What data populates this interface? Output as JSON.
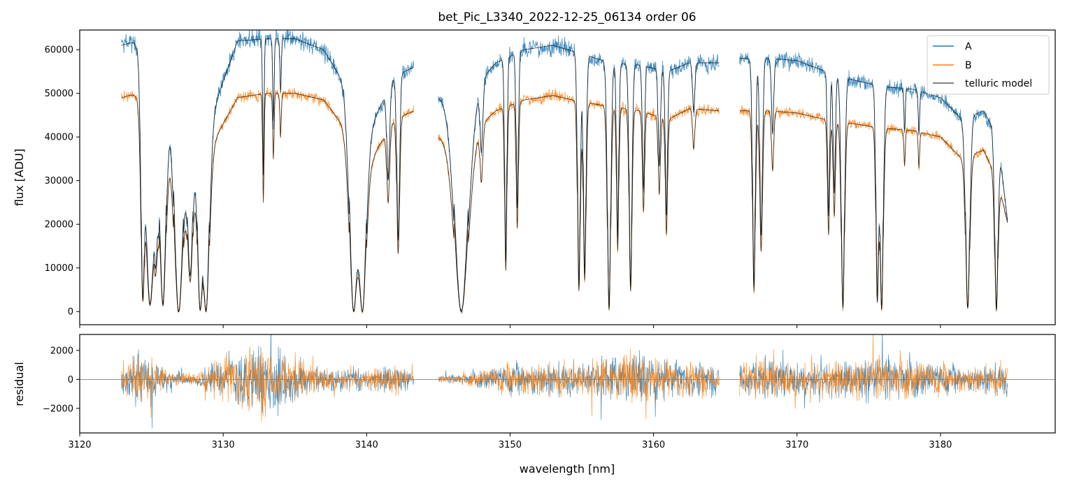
{
  "chart_data": [
    {
      "panel": "top",
      "type": "line",
      "title": "bet_Pic_L3340_2022-12-25_06134  order 06",
      "xlabel": "",
      "ylabel": "flux [ADU]",
      "xlim": [
        3120,
        3188
      ],
      "ylim": [
        -3000,
        64500
      ],
      "xticks": [
        3120,
        3130,
        3140,
        3150,
        3160,
        3170,
        3180
      ],
      "yticks": [
        0,
        10000,
        20000,
        30000,
        40000,
        50000,
        60000
      ],
      "yticklabels": [
        "0",
        "10000",
        "20000",
        "30000",
        "40000",
        "50000",
        "60000"
      ],
      "legend": {
        "placement": "top-right",
        "entries": [
          "A",
          "B",
          "telluric model"
        ]
      },
      "colors": {
        "A": "#1f77b4",
        "B": "#ff7f0e",
        "telluric model": "#000000"
      },
      "continuum": {
        "A": [
          [
            3122.9,
            61000
          ],
          [
            3124.0,
            62000
          ],
          [
            3125.5,
            58000
          ],
          [
            3126.5,
            56000
          ],
          [
            3128.0,
            42000
          ],
          [
            3129.5,
            48000
          ],
          [
            3131.0,
            62000
          ],
          [
            3133.0,
            62500
          ],
          [
            3135.0,
            62500
          ],
          [
            3137.0,
            60000
          ],
          [
            3138.5,
            52000
          ],
          [
            3140.5,
            44000
          ],
          [
            3142.0,
            54000
          ],
          [
            3143.3,
            56000
          ],
          [
            3145.0,
            49000
          ],
          [
            3147.0,
            49000
          ],
          [
            3149.0,
            57000
          ],
          [
            3151.0,
            60000
          ],
          [
            3153.0,
            61000
          ],
          [
            3155.0,
            59000
          ],
          [
            3157.0,
            57000
          ],
          [
            3159.0,
            56500
          ],
          [
            3161.0,
            55000
          ],
          [
            3162.5,
            57000
          ],
          [
            3164.6,
            57000
          ],
          [
            3166.0,
            58000
          ],
          [
            3168.0,
            58000
          ],
          [
            3170.0,
            57500
          ],
          [
            3172.0,
            55000
          ],
          [
            3174.0,
            53000
          ],
          [
            3176.0,
            51500
          ],
          [
            3178.0,
            51000
          ],
          [
            3180.0,
            49000
          ],
          [
            3181.5,
            44000
          ],
          [
            3183.0,
            46000
          ],
          [
            3184.0,
            40000
          ],
          [
            3184.7,
            20000
          ]
        ],
        "B": [
          [
            3122.9,
            49000
          ],
          [
            3124.0,
            50000
          ],
          [
            3125.5,
            48000
          ],
          [
            3126.5,
            45000
          ],
          [
            3128.0,
            35000
          ],
          [
            3129.5,
            40000
          ],
          [
            3131.0,
            49000
          ],
          [
            3133.0,
            50000
          ],
          [
            3135.0,
            50000
          ],
          [
            3137.0,
            48500
          ],
          [
            3138.5,
            42000
          ],
          [
            3140.5,
            36000
          ],
          [
            3142.0,
            44000
          ],
          [
            3143.3,
            46000
          ],
          [
            3145.0,
            40000
          ],
          [
            3147.0,
            40000
          ],
          [
            3149.0,
            46000
          ],
          [
            3151.0,
            48500
          ],
          [
            3153.0,
            49500
          ],
          [
            3155.0,
            48000
          ],
          [
            3157.0,
            47000
          ],
          [
            3159.0,
            46000
          ],
          [
            3161.0,
            44000
          ],
          [
            3162.5,
            46500
          ],
          [
            3164.6,
            46000
          ],
          [
            3166.0,
            46000
          ],
          [
            3168.0,
            46000
          ],
          [
            3170.0,
            45500
          ],
          [
            3172.0,
            44000
          ],
          [
            3174.0,
            43000
          ],
          [
            3176.0,
            42000
          ],
          [
            3178.0,
            41500
          ],
          [
            3180.0,
            40000
          ],
          [
            3181.5,
            35000
          ],
          [
            3183.0,
            37000
          ],
          [
            3184.0,
            30000
          ],
          [
            3184.7,
            20000
          ]
        ]
      },
      "segments": [
        [
          3122.9,
          3143.3
        ],
        [
          3145.0,
          3164.6
        ],
        [
          3166.0,
          3184.7
        ]
      ],
      "absorption_lines": [
        [
          3124.4,
          0.93,
          0.12
        ],
        [
          3124.9,
          0.97,
          0.35
        ],
        [
          3125.3,
          0.6,
          0.15
        ],
        [
          3125.8,
          0.97,
          0.25
        ],
        [
          3126.9,
          1.0,
          0.35
        ],
        [
          3127.7,
          0.8,
          0.2
        ],
        [
          3128.4,
          0.99,
          0.2
        ],
        [
          3128.8,
          1.0,
          0.25
        ],
        [
          3132.8,
          0.5,
          0.05
        ],
        [
          3133.5,
          0.3,
          0.05
        ],
        [
          3134.0,
          0.2,
          0.05
        ],
        [
          3139.1,
          1.0,
          0.3
        ],
        [
          3139.7,
          1.0,
          0.3
        ],
        [
          3141.5,
          0.4,
          0.1
        ],
        [
          3142.2,
          0.7,
          0.1
        ],
        [
          3146.6,
          1.0,
          0.5
        ],
        [
          3148.0,
          0.3,
          0.1
        ],
        [
          3149.7,
          0.8,
          0.08
        ],
        [
          3150.5,
          0.6,
          0.08
        ],
        [
          3154.8,
          0.9,
          0.1
        ],
        [
          3155.2,
          0.85,
          0.1
        ],
        [
          3156.9,
          0.99,
          0.12
        ],
        [
          3157.5,
          0.7,
          0.08
        ],
        [
          3158.4,
          0.9,
          0.1
        ],
        [
          3159.3,
          0.5,
          0.08
        ],
        [
          3160.4,
          0.4,
          0.08
        ],
        [
          3160.9,
          0.6,
          0.08
        ],
        [
          3162.8,
          0.2,
          0.08
        ],
        [
          3167.0,
          0.9,
          0.1
        ],
        [
          3167.5,
          0.7,
          0.1
        ],
        [
          3168.3,
          0.3,
          0.08
        ],
        [
          3172.2,
          0.6,
          0.08
        ],
        [
          3172.6,
          0.5,
          0.08
        ],
        [
          3173.2,
          0.98,
          0.12
        ],
        [
          3175.6,
          0.95,
          0.1
        ],
        [
          3175.9,
          0.99,
          0.12
        ],
        [
          3177.5,
          0.2,
          0.05
        ],
        [
          3178.5,
          0.2,
          0.05
        ],
        [
          3181.9,
          0.98,
          0.15
        ],
        [
          3183.9,
          0.99,
          0.12
        ]
      ]
    },
    {
      "panel": "bottom",
      "type": "line",
      "title": "",
      "xlabel": "wavelength [nm]",
      "ylabel": "residual",
      "xlim": [
        3120,
        3188
      ],
      "ylim": [
        -3700,
        3100
      ],
      "xticks": [
        3120,
        3130,
        3140,
        3150,
        3160,
        3170,
        3180
      ],
      "xticklabels": [
        "3120",
        "3130",
        "3140",
        "3150",
        "3160",
        "3170",
        "3180"
      ],
      "yticks": [
        -2000,
        0,
        2000
      ],
      "yticklabels": [
        "−2000",
        "0",
        "2000"
      ],
      "zero_line": true,
      "segments": [
        [
          3122.9,
          3143.3
        ],
        [
          3145.0,
          3164.6
        ],
        [
          3166.0,
          3184.7
        ]
      ],
      "noise_profile": [
        [
          3122.9,
          800
        ],
        [
          3124.0,
          1800
        ],
        [
          3126.0,
          600
        ],
        [
          3128.0,
          300
        ],
        [
          3130.0,
          1500
        ],
        [
          3133.0,
          2200
        ],
        [
          3136.0,
          1000
        ],
        [
          3138.0,
          700
        ],
        [
          3140.0,
          600
        ],
        [
          3142.0,
          900
        ],
        [
          3143.3,
          400
        ],
        [
          3145.0,
          200
        ],
        [
          3147.0,
          400
        ],
        [
          3150.0,
          900
        ],
        [
          3155.0,
          1000
        ],
        [
          3158.0,
          1600
        ],
        [
          3161.0,
          1200
        ],
        [
          3164.6,
          900
        ],
        [
          3166.0,
          1300
        ],
        [
          3170.0,
          1200
        ],
        [
          3174.0,
          1100
        ],
        [
          3176.0,
          1500
        ],
        [
          3180.0,
          900
        ],
        [
          3182.0,
          700
        ],
        [
          3184.7,
          1000
        ]
      ]
    }
  ]
}
